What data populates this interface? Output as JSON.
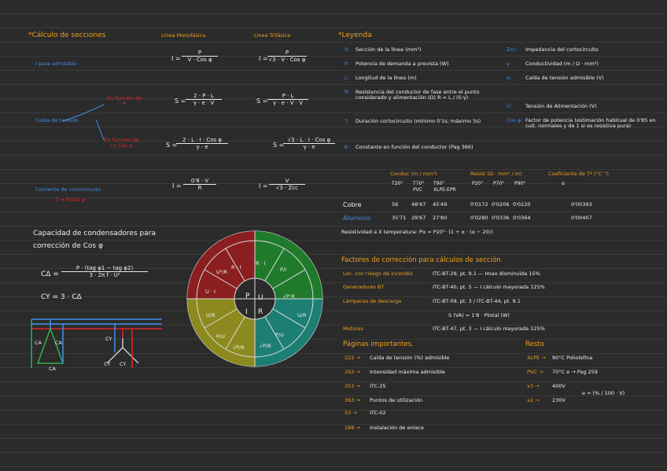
{
  "left": {
    "title": "*Cálculo de secciones",
    "col_mono": "Línea Monofásica",
    "col_tri": "Línea Trifásica",
    "i_label": "I para admisible",
    "i_mono_lhs": "I =",
    "i_mono_num": "P",
    "i_mono_den": "V · Cos φ",
    "i_tri_lhs": "I =",
    "i_tri_num": "P",
    "i_tri_den": "√3 · V · Cos φ",
    "caida_label": "Caída de tensión",
    "fn_p1": "En función de",
    "fn_p2": "P",
    "s1_mono_lhs": "S =",
    "s1_mono_num": "2 · P · L",
    "s1_mono_den": "γ · e · V",
    "s1_tri_lhs": "S =",
    "s1_tri_num": "P · L",
    "s1_tri_den": "γ · e · V · V",
    "fi_1": "En función de",
    "fi_2": "I y Cos φ",
    "s2_mono_lhs": "S =",
    "s2_mono_num": "2 · L · I · Cos φ",
    "s2_mono_den": "γ · e",
    "s2_tri_lhs": "S =",
    "s2_tri_num": "√3 · L · I · Cos φ",
    "s2_tri_den": "γ · e",
    "cc_label": "Corriente de cortocircuito",
    "cc_sub": "Z = R",
    "cc_sub2": "cos φ",
    "cc_mono_lhs": "I =",
    "cc_mono_num": "0'8 · V",
    "cc_mono_den": "R",
    "cc_tri_lhs": "I =",
    "cc_tri_num": "V",
    "cc_tri_den": "√3 · Zcc",
    "cap_title1": "Capacidad de condensadores para",
    "cap_title2": "corrección de Cos φ",
    "cap_lhs": "CΔ =",
    "cap_num": "P · (tag φ1 − tag φ2)",
    "cap_den": "3 · 2π f · U²",
    "cy_eq": "CY = 3 · CΔ",
    "ca1": "CA",
    "ca2": "CA",
    "ca3": "CA",
    "cy1": "CY",
    "cy2": "CY",
    "cy3": "CY"
  },
  "wheel": {
    "red_1": "R · I",
    "red_2": "U · I",
    "red_3": "U²/R",
    "green_1": "R · I",
    "green_2": "P/I",
    "green_3": "√P·R",
    "teal_1": "U/R",
    "teal_2": "P/U",
    "teal_3": "√P/R",
    "yellow_1": "U/R",
    "yellow_2": "P/U",
    "yellow_3": "√P/R",
    "center_p": "P",
    "center_u": "U",
    "center_i": "I",
    "center_r": "R"
  },
  "right": {
    "title": "*Leyenda",
    "legend_left": [
      {
        "k": "S:",
        "v": "Sección de la línea (mm²)"
      },
      {
        "k": "P:",
        "v": "Potencia de demanda a prevista (W)"
      },
      {
        "k": "L:",
        "v": "Longitud de la línea (m)"
      },
      {
        "k": "R:",
        "v": "Resistencia del conductor de fase entre el punto considerado y alimentación (Ω)  R = L / (S·γ)"
      },
      {
        "k": "T:",
        "v": "Duración cortocircuito (mínimo 0'1s; máximo 5s)"
      },
      {
        "k": "K:",
        "v": "Constante en función del conductor (Pag 366)"
      }
    ],
    "legend_right": [
      {
        "k": "Zcc:",
        "v": "Impedancia del cortocircuito"
      },
      {
        "k": "γ:",
        "v": "Conductividad (m / Ω · mm²)"
      },
      {
        "k": "e:",
        "v": "Caída de tensión admisible (V)"
      },
      {
        "k": "U:",
        "v": "Tensión de Alimentación (V)"
      },
      {
        "k": "Cos φ:",
        "v": "Factor de potencia (estimación habitual de 0'85 en cuit. normales y de 1 si es resistiva pura)"
      }
    ],
    "table": {
      "h_cond": "Conduc (m / mm²)",
      "h_resist": "Resist (Ω · mm² / m)",
      "h_coef": "Coeficiente de Tª (°C⁻¹)",
      "sub": [
        "T20°",
        "T70°",
        "T90°",
        "P20°",
        "P70°",
        "P90°",
        "α"
      ],
      "sub2": [
        "",
        "PVC",
        "XLPE-EPR"
      ],
      "rows": [
        {
          "name": "Cobre",
          "vals": [
            "56",
            "48'47",
            "45'49",
            "0'0172",
            "0'0206",
            "0'0220",
            "0'00393"
          ]
        },
        {
          "name": "Aluminio",
          "vals": [
            "35'71",
            "29'67",
            "27'80",
            "0'0280",
            "0'0336",
            "0'0364",
            "0'00407"
          ]
        }
      ],
      "resistividad": "Resistividad a X temperatura: Pα = P20°· (1 + α · (α − 20))"
    },
    "factores_title": "Factores de corrección para cálculos de sección",
    "factores": [
      {
        "k": "Loc. con riesgo de incendio",
        "v": "ITC-BT-29, pt. 9.1 — Imax disminuida 15%"
      },
      {
        "k": "Generadores BT",
        "v": "ITC-BT-40, pt. 5 — I cálculo mayorada 125%"
      },
      {
        "k": "Lámparas de descarga",
        "v": "ITC-BT-09, pt. 3 / ITC-BT-44, pt. 9.1"
      },
      {
        "k": "",
        "v": "S (VA) = 1'8 · Ptotal (W)"
      },
      {
        "k": "Motores",
        "v": "ITC-BT-47, pt. 3 — I cálculo mayorada 125%"
      }
    ],
    "paginas_title": "Páginas importantes.",
    "resto_title": "Resto",
    "paginas": [
      {
        "p": "222 →",
        "v": "Caída de tensión (%) admisible"
      },
      {
        "p": "263 →",
        "v": "Intensidad máxima admisible"
      },
      {
        "p": "353 →",
        "v": "ITC-25"
      },
      {
        "p": "363 →",
        "v": "Puntos de utilización"
      },
      {
        "p": "53 →",
        "v": "ITC-02"
      },
      {
        "p": "188 →",
        "v": "Instalación de enlace"
      }
    ],
    "resto": [
      {
        "k": "XLPE →",
        "v": "90°C  Poliolefina"
      },
      {
        "k": "PVC →",
        "v": "70°C   e → Pag 259"
      },
      {
        "k": "x3 →",
        "v": "400V"
      },
      {
        "k": "x2 →",
        "v": "230V"
      },
      {
        "k": "",
        "v": "e = (% / 100 · V)"
      }
    ]
  },
  "colors": {
    "background": "#2b2b2b",
    "orange": "#f0a020",
    "blue": "#3c8ff0",
    "red_text": "#e02828",
    "wheel_red": "#8b1f1f",
    "wheel_green": "#1f7a2c",
    "wheel_teal": "#1d7e74",
    "wheel_yellow": "#8c8a1e"
  }
}
